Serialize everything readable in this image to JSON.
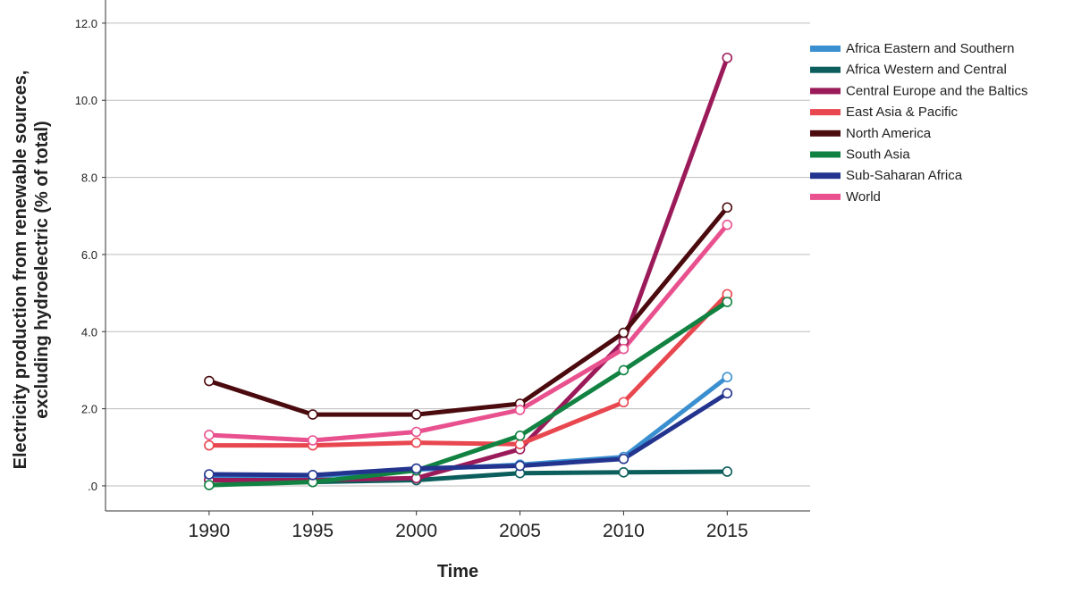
{
  "chart_data": {
    "type": "line",
    "title": "",
    "xlabel": "Time",
    "ylabel_lines": [
      "Electricity production from renewable sources,",
      "excluding hydroelectric (% of total)"
    ],
    "x": [
      1990,
      1995,
      2000,
      2005,
      2010,
      2015
    ],
    "xlim": [
      1985,
      2019
    ],
    "ylim": [
      -0.65,
      12.6
    ],
    "y_ticks": [
      0,
      2,
      4,
      6,
      8,
      10,
      12
    ],
    "y_tick_labels": [
      ".0",
      "2.0",
      "4.0",
      "6.0",
      "8.0",
      "10.0",
      "12.0"
    ],
    "grid": "horizontal",
    "legend_position": "right",
    "series": [
      {
        "name": "Africa Eastern and Southern",
        "color": "#3a8fd0",
        "values": [
          0.25,
          0.25,
          0.42,
          0.55,
          0.75,
          2.82
        ]
      },
      {
        "name": "Africa Western and Central",
        "color": "#0b5e5c",
        "values": [
          0.15,
          0.1,
          0.15,
          0.33,
          0.35,
          0.37
        ]
      },
      {
        "name": "Central Europe and the Baltics",
        "color": "#9b1b5a",
        "values": [
          0.15,
          0.15,
          0.2,
          0.95,
          3.75,
          11.1
        ]
      },
      {
        "name": "East Asia & Pacific",
        "color": "#e8474f",
        "values": [
          1.05,
          1.05,
          1.12,
          1.08,
          2.17,
          4.97
        ]
      },
      {
        "name": "North America",
        "color": "#4a0a0e",
        "values": [
          2.72,
          1.85,
          1.85,
          2.13,
          3.97,
          7.22
        ]
      },
      {
        "name": "South Asia",
        "color": "#118241",
        "values": [
          0.02,
          0.1,
          0.4,
          1.3,
          3.0,
          4.77
        ]
      },
      {
        "name": "Sub-Saharan Africa",
        "color": "#23348f",
        "values": [
          0.3,
          0.28,
          0.45,
          0.52,
          0.7,
          2.4
        ]
      },
      {
        "name": "World",
        "color": "#e8508e",
        "values": [
          1.32,
          1.18,
          1.4,
          1.97,
          3.55,
          6.77
        ]
      }
    ]
  }
}
